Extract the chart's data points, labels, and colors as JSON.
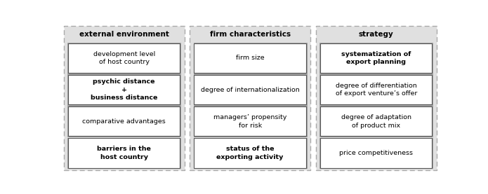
{
  "columns": [
    {
      "header": "external environment",
      "header_bold": true,
      "items": [
        {
          "text": "development level\nof host country",
          "bold": false
        },
        {
          "text": "psychic distance\n+\nbusiness distance",
          "bold": true
        },
        {
          "text": "comparative advantages",
          "bold": false
        },
        {
          "text": "barriers in the\nhost country",
          "bold": true
        }
      ]
    },
    {
      "header": "firm characteristics",
      "header_bold": true,
      "items": [
        {
          "text": "firm size",
          "bold": false
        },
        {
          "text": "degree of internationalization",
          "bold": false
        },
        {
          "text": "managers’ propensity\nfor risk",
          "bold": false
        },
        {
          "text": "status of the\nexporting activity",
          "bold": true
        }
      ]
    },
    {
      "header": "strategy",
      "header_bold": true,
      "items": [
        {
          "text": "systematization of\nexport planning",
          "bold": true
        },
        {
          "text": "degree of differentiation\nof export venture’s offer",
          "bold": false
        },
        {
          "text": "degree of adaptation\nof product mix",
          "bold": false
        },
        {
          "text": "price competitiveness",
          "bold": false
        }
      ]
    }
  ],
  "fig_width": 6.95,
  "fig_height": 2.77,
  "dpi": 100,
  "bg_color": "#e0e0e0",
  "box_color": "#ffffff",
  "item_border_color": "#888888",
  "item_border_color2": "#555555",
  "outer_border_color": "#aaaaaa",
  "header_fontsize": 7.5,
  "item_fontsize": 6.8,
  "outer_lw": 1.0,
  "item_lw": 0.8
}
